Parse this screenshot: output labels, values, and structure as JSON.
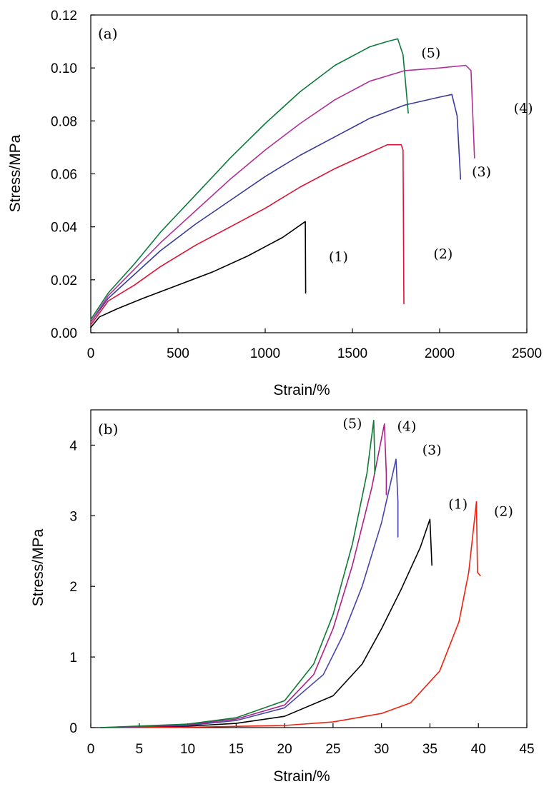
{
  "chart_data": [
    {
      "type": "line",
      "panel_label": "(a)",
      "xlabel": "Strain/%",
      "ylabel": "Stress/MPa",
      "xlim": [
        0,
        2500
      ],
      "ylim": [
        0,
        0.12
      ],
      "xticks": [
        0,
        500,
        1000,
        1500,
        2000,
        2500
      ],
      "xtick_labels": [
        "0",
        "500",
        "1000",
        "1500",
        "2000",
        "2500"
      ],
      "yticks": [
        0,
        0.02,
        0.04,
        0.06,
        0.08,
        0.1,
        0.12
      ],
      "ytick_labels": [
        "0.00",
        "0.02",
        "0.04",
        "0.06",
        "0.08",
        "0.10",
        "0.12"
      ],
      "grid": false,
      "series": [
        {
          "name": "(1)",
          "color": "#000000",
          "label_at": [
            1420,
            0.027
          ],
          "points": [
            [
              0,
              0.002
            ],
            [
              50,
              0.006
            ],
            [
              150,
              0.009
            ],
            [
              300,
              0.013
            ],
            [
              500,
              0.018
            ],
            [
              700,
              0.023
            ],
            [
              900,
              0.029
            ],
            [
              1100,
              0.036
            ],
            [
              1230,
              0.042
            ],
            [
              1232,
              0.015
            ]
          ]
        },
        {
          "name": "(2)",
          "color": "#dd1133",
          "label_at": [
            2020,
            0.028
          ],
          "points": [
            [
              0,
              0.003
            ],
            [
              100,
              0.012
            ],
            [
              250,
              0.018
            ],
            [
              400,
              0.025
            ],
            [
              600,
              0.033
            ],
            [
              800,
              0.04
            ],
            [
              1000,
              0.047
            ],
            [
              1200,
              0.055
            ],
            [
              1400,
              0.062
            ],
            [
              1600,
              0.068
            ],
            [
              1700,
              0.071
            ],
            [
              1780,
              0.071
            ],
            [
              1790,
              0.069
            ],
            [
              1795,
              0.011
            ]
          ]
        },
        {
          "name": "(3)",
          "color": "#3a3a9a",
          "label_at": [
            2240,
            0.059
          ],
          "points": [
            [
              0,
              0.004
            ],
            [
              100,
              0.013
            ],
            [
              250,
              0.022
            ],
            [
              400,
              0.031
            ],
            [
              600,
              0.041
            ],
            [
              800,
              0.05
            ],
            [
              1000,
              0.059
            ],
            [
              1200,
              0.067
            ],
            [
              1400,
              0.074
            ],
            [
              1600,
              0.081
            ],
            [
              1800,
              0.086
            ],
            [
              2000,
              0.089
            ],
            [
              2070,
              0.09
            ],
            [
              2100,
              0.082
            ],
            [
              2120,
              0.058
            ]
          ]
        },
        {
          "name": "(4)",
          "color": "#b0309a",
          "label_at": [
            2480,
            0.083
          ],
          "points": [
            [
              0,
              0.004
            ],
            [
              100,
              0.014
            ],
            [
              250,
              0.024
            ],
            [
              400,
              0.034
            ],
            [
              600,
              0.046
            ],
            [
              800,
              0.058
            ],
            [
              1000,
              0.069
            ],
            [
              1200,
              0.079
            ],
            [
              1400,
              0.088
            ],
            [
              1600,
              0.095
            ],
            [
              1800,
              0.099
            ],
            [
              2000,
              0.1
            ],
            [
              2150,
              0.101
            ],
            [
              2180,
              0.099
            ],
            [
              2200,
              0.066
            ]
          ]
        },
        {
          "name": "(5)",
          "color": "#0d7a3c",
          "label_at": [
            1950,
            0.104
          ],
          "points": [
            [
              0,
              0.005
            ],
            [
              100,
              0.015
            ],
            [
              250,
              0.026
            ],
            [
              400,
              0.038
            ],
            [
              600,
              0.052
            ],
            [
              800,
              0.066
            ],
            [
              1000,
              0.079
            ],
            [
              1200,
              0.091
            ],
            [
              1400,
              0.101
            ],
            [
              1600,
              0.108
            ],
            [
              1700,
              0.11
            ],
            [
              1760,
              0.111
            ],
            [
              1790,
              0.105
            ],
            [
              1820,
              0.083
            ]
          ]
        }
      ]
    },
    {
      "type": "line",
      "panel_label": "(b)",
      "xlabel": "Strain/%",
      "ylabel": "Stress/MPa",
      "xlim": [
        0,
        45
      ],
      "ylim": [
        0,
        4.5
      ],
      "xticks": [
        0,
        5,
        10,
        15,
        20,
        25,
        30,
        35,
        40,
        45
      ],
      "xtick_labels": [
        "0",
        "5",
        "10",
        "15",
        "20",
        "25",
        "30",
        "35",
        "40",
        "45"
      ],
      "yticks": [
        0,
        1,
        2,
        3,
        4
      ],
      "ytick_labels": [
        "0",
        "1",
        "2",
        "3",
        "4"
      ],
      "grid": false,
      "series": [
        {
          "name": "(1)",
          "color": "#000000",
          "label_at": [
            37.9,
            3.1
          ],
          "points": [
            [
              1,
              0
            ],
            [
              10,
              0.02
            ],
            [
              15,
              0.06
            ],
            [
              20,
              0.16
            ],
            [
              25,
              0.45
            ],
            [
              28,
              0.9
            ],
            [
              30,
              1.4
            ],
            [
              32,
              1.95
            ],
            [
              34,
              2.55
            ],
            [
              35,
              2.95
            ],
            [
              35.2,
              2.3
            ]
          ]
        },
        {
          "name": "(2)",
          "color": "#ee2211",
          "label_at": [
            42.6,
            3.0
          ],
          "points": [
            [
              1,
              0
            ],
            [
              10,
              0.005
            ],
            [
              20,
              0.03
            ],
            [
              25,
              0.08
            ],
            [
              30,
              0.2
            ],
            [
              33,
              0.35
            ],
            [
              36,
              0.8
            ],
            [
              38,
              1.5
            ],
            [
              39,
              2.2
            ],
            [
              39.8,
              3.2
            ],
            [
              39.9,
              2.2
            ],
            [
              40.2,
              2.15
            ]
          ]
        },
        {
          "name": "(3)",
          "color": "#4444aa",
          "label_at": [
            35.2,
            3.87
          ],
          "points": [
            [
              1,
              0
            ],
            [
              10,
              0.03
            ],
            [
              15,
              0.1
            ],
            [
              20,
              0.28
            ],
            [
              24,
              0.75
            ],
            [
              26,
              1.3
            ],
            [
              28,
              2.0
            ],
            [
              30,
              2.9
            ],
            [
              31.5,
              3.8
            ],
            [
              31.7,
              3.2
            ],
            [
              31.7,
              2.7
            ]
          ]
        },
        {
          "name": "(4)",
          "color": "#aa2288",
          "label_at": [
            32.6,
            4.2
          ],
          "points": [
            [
              1,
              0
            ],
            [
              10,
              0.04
            ],
            [
              15,
              0.12
            ],
            [
              20,
              0.32
            ],
            [
              23,
              0.75
            ],
            [
              25,
              1.4
            ],
            [
              27,
              2.3
            ],
            [
              29,
              3.4
            ],
            [
              30.3,
              4.3
            ],
            [
              30.5,
              3.6
            ],
            [
              30.5,
              3.3
            ]
          ]
        },
        {
          "name": "(5)",
          "color": "#0b7a33",
          "label_at": [
            27.0,
            4.24
          ],
          "points": [
            [
              1,
              0
            ],
            [
              10,
              0.05
            ],
            [
              15,
              0.14
            ],
            [
              20,
              0.38
            ],
            [
              23,
              0.9
            ],
            [
              25,
              1.6
            ],
            [
              27,
              2.6
            ],
            [
              28.5,
              3.6
            ],
            [
              29.2,
              4.35
            ],
            [
              29.3,
              3.8
            ],
            [
              29.3,
              3.6
            ]
          ]
        }
      ]
    }
  ]
}
